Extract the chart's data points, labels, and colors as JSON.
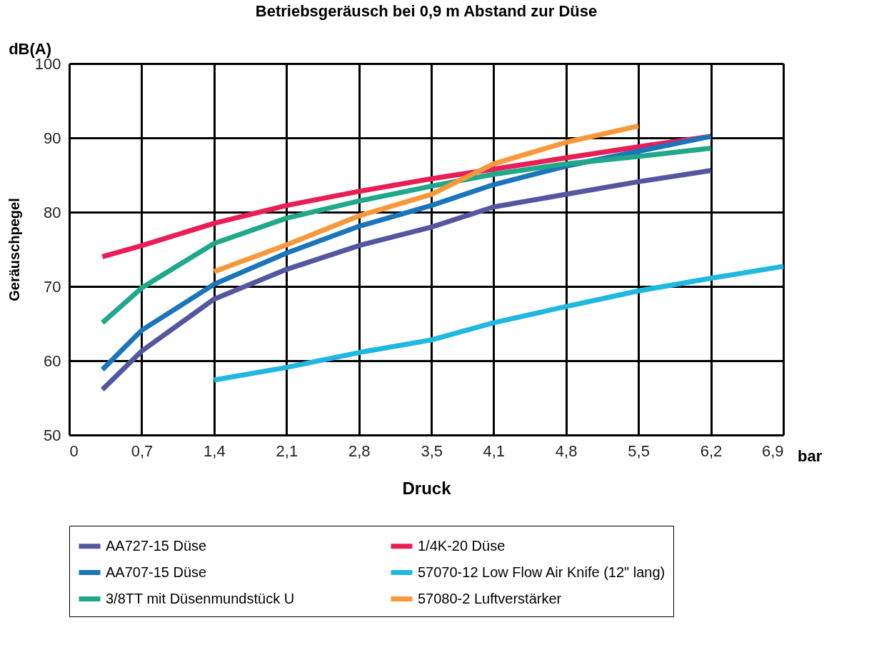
{
  "chart_data": {
    "type": "line",
    "title": "Betriebsgeräusch bei 0,9 m Abstand zur Düse",
    "xlabel": "Druck",
    "ylabel": "Geräuschpegel",
    "annotations": [
      "dB(A)",
      "bar"
    ],
    "xlim": [
      0,
      6.9
    ],
    "ylim": [
      50,
      100
    ],
    "yticks": [
      50,
      60,
      70,
      80,
      90,
      100
    ],
    "xticks": [
      {
        "value": 0,
        "label": "0"
      },
      {
        "value": 0.7,
        "label": "0,7"
      },
      {
        "value": 1.4,
        "label": "1,4"
      },
      {
        "value": 2.1,
        "label": "2,1"
      },
      {
        "value": 2.8,
        "label": "2,8"
      },
      {
        "value": 3.5,
        "label": "3,5"
      },
      {
        "value": 4.1,
        "label": "4,1"
      },
      {
        "value": 4.8,
        "label": "4,8"
      },
      {
        "value": 5.5,
        "label": "5,5"
      },
      {
        "value": 6.2,
        "label": "6,2"
      },
      {
        "value": 6.9,
        "label": "6,9"
      }
    ],
    "grid": true,
    "legend": "bottom",
    "marker": "none",
    "line_style": "solid",
    "series": [
      {
        "name": "AA727-15 Düse",
        "color": "#5457a0",
        "x": [
          0.32,
          0.7,
          1.4,
          2.1,
          2.8,
          3.5,
          4.1,
          4.8,
          5.5,
          6.2
        ],
        "values": [
          56.1,
          61.3,
          68.3,
          72.3,
          75.5,
          78.0,
          80.7,
          82.4,
          84.1,
          85.6
        ]
      },
      {
        "name": "1/4K-20 Düse",
        "color": "#e81e55",
        "x": [
          0.32,
          0.7,
          1.4,
          2.1,
          2.8,
          3.5,
          4.1,
          4.8,
          5.5,
          6.2
        ],
        "values": [
          74.0,
          75.5,
          78.5,
          80.9,
          82.8,
          84.5,
          85.8,
          87.3,
          88.8,
          90.2
        ]
      },
      {
        "name": "AA707-15 Düse",
        "color": "#1a75bb",
        "x": [
          0.32,
          0.7,
          1.4,
          2.1,
          2.8,
          3.5,
          4.1,
          4.8,
          5.5,
          6.2
        ],
        "values": [
          58.8,
          64.1,
          70.3,
          74.5,
          78.1,
          80.9,
          83.7,
          86.2,
          88.2,
          90.2
        ]
      },
      {
        "name": "57070-12 Low Flow Air Knife (12\" lang)",
        "color": "#1fb8e0",
        "x": [
          1.4,
          2.1,
          2.8,
          3.5,
          4.1,
          4.8,
          5.5,
          6.2,
          6.9
        ],
        "values": [
          57.4,
          59.1,
          61.1,
          62.8,
          65.1,
          67.3,
          69.4,
          71.1,
          72.7
        ]
      },
      {
        "name": "3/8TT mit Düsenmundstück U",
        "color": "#1fa88a",
        "x": [
          0.32,
          0.7,
          1.4,
          2.1,
          2.8,
          3.5,
          4.1,
          4.8,
          5.5,
          6.2
        ],
        "values": [
          65.1,
          69.8,
          75.8,
          79.2,
          81.5,
          83.5,
          85.1,
          86.5,
          87.5,
          88.6
        ]
      },
      {
        "name": "57080-2 Luftverstärker",
        "color": "#f7993a",
        "x": [
          1.4,
          2.1,
          2.8,
          3.5,
          4.1,
          4.8,
          5.5
        ],
        "values": [
          72.0,
          75.6,
          79.5,
          82.4,
          86.5,
          89.4,
          91.6
        ]
      }
    ]
  }
}
